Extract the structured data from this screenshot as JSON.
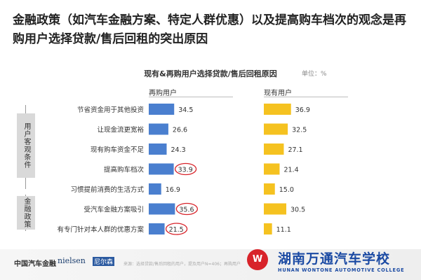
{
  "headline": "金融政策（如汽车金融方案、特定人群优惠）以及提高购车档次的观念是再购用户选择贷款/售后回租的突出原因",
  "chart_data": {
    "type": "bar",
    "title": "现有&再购用户选择贷款/售后回租原因",
    "unit": "单位：%",
    "categories": [
      "节省资金用于其他投资",
      "让现金流更宽裕",
      "现有购车资金不足",
      "提高购车档次",
      "习惯提前消费的生活方式",
      "受汽车金融方案吸引",
      "有专门针对本人群的优惠方案"
    ],
    "series": [
      {
        "name": "再购用户",
        "color": "#4a7fcf",
        "values": [
          34.5,
          26.6,
          24.3,
          33.9,
          16.9,
          35.6,
          21.5
        ],
        "highlighted": [
          false,
          false,
          false,
          true,
          false,
          true,
          true
        ]
      },
      {
        "name": "现有用户",
        "color": "#f5c220",
        "values": [
          36.9,
          32.5,
          27.1,
          21.4,
          15.0,
          30.5,
          11.1
        ],
        "labels": [
          "36.9",
          "32.5",
          "27.1",
          "21.4",
          "15.0",
          "30.5",
          "11.1"
        ]
      }
    ],
    "groups": [
      {
        "label": "用户客观条件",
        "rows": [
          0,
          4
        ]
      },
      {
        "label": "金融政策",
        "rows": [
          5,
          6
        ]
      }
    ]
  },
  "footer": {
    "logo_cn": "中国汽车金融",
    "logo_nielsen": "nielsen",
    "logo_nielsen_cn": "尼尔森",
    "source": "来源：选择贷款/售后回租的用户，提及用户N=406；再购用户",
    "school_badge": "W",
    "school_cn": "湖南万通汽车学校",
    "school_en": "HUNAN WONTONE AUTOMOTIVE COLLEGE"
  }
}
